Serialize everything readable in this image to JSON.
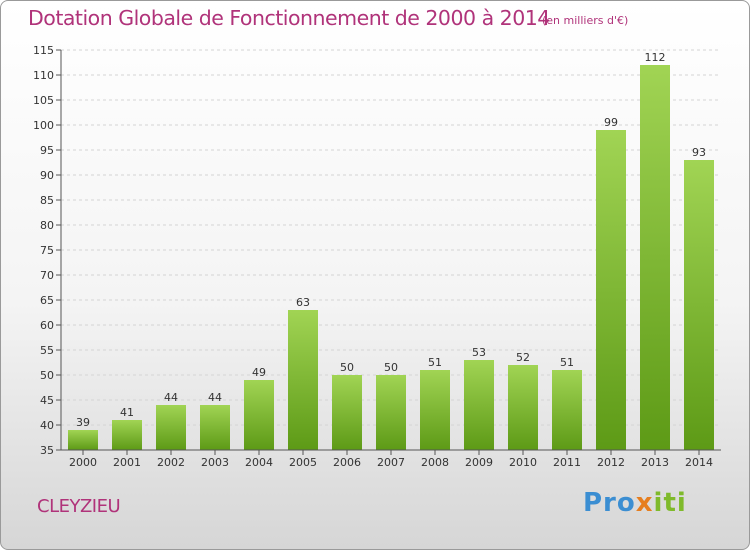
{
  "title": "Dotation Globale de Fonctionnement de 2000 à 2014",
  "subtitle": "(en milliers d'€)",
  "town": "CLEYZIEU",
  "logo": {
    "part1": "Pro",
    "part2": "x",
    "part3": "iti"
  },
  "colors": {
    "bar_light": "#a1d454",
    "bar_dark": "#5d9a16",
    "title": "#b0337a"
  },
  "chart_data": {
    "type": "bar",
    "title": "Dotation Globale de Fonctionnement de 2000 à 2014",
    "subtitle": "(en milliers d'€)",
    "categories": [
      "2000",
      "2001",
      "2002",
      "2003",
      "2004",
      "2005",
      "2006",
      "2007",
      "2008",
      "2009",
      "2010",
      "2011",
      "2012",
      "2013",
      "2014"
    ],
    "values": [
      39,
      41,
      44,
      44,
      49,
      63,
      50,
      50,
      51,
      53,
      52,
      51,
      99,
      112,
      93
    ],
    "ylim": [
      35,
      115
    ],
    "yticks": [
      35,
      40,
      45,
      50,
      55,
      60,
      65,
      70,
      75,
      80,
      85,
      90,
      95,
      100,
      105,
      110,
      115
    ],
    "grid": true
  }
}
